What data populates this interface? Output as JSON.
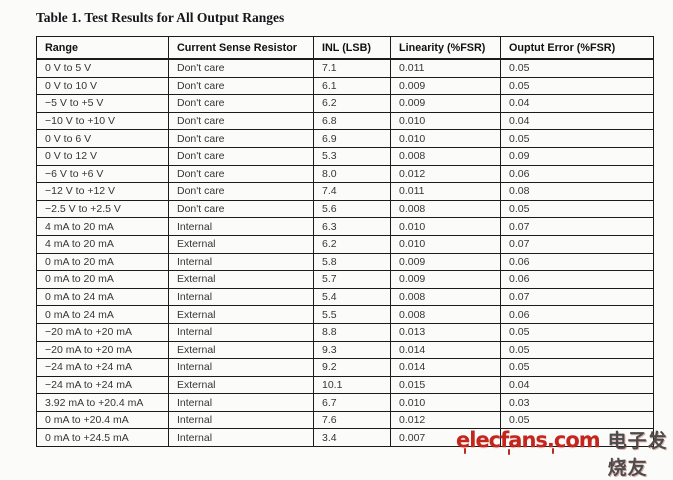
{
  "page": {
    "title": "Table 1. Test Results for All Output Ranges"
  },
  "table": {
    "columns": [
      "Range",
      "Current Sense Resistor",
      "INL (LSB)",
      "Linearity (%FSR)",
      "Ouptut Error (%FSR)"
    ],
    "rows": [
      [
        "0 V to 5 V",
        "Don't care",
        "7.1",
        "0.011",
        "0.05"
      ],
      [
        "0 V to 10 V",
        "Don't care",
        "6.1",
        "0.009",
        "0.05"
      ],
      [
        "−5 V to +5 V",
        "Don't care",
        "6.2",
        "0.009",
        "0.04"
      ],
      [
        "−10 V to +10 V",
        "Don't care",
        "6.8",
        "0.010",
        "0.04"
      ],
      [
        "0 V to 6 V",
        "Don't care",
        "6.9",
        "0.010",
        "0.05"
      ],
      [
        "0 V to 12 V",
        "Don't care",
        "5.3",
        "0.008",
        "0.09"
      ],
      [
        "−6 V to +6 V",
        "Don't care",
        "8.0",
        "0.012",
        "0.06"
      ],
      [
        "−12 V to +12 V",
        "Don't care",
        "7.4",
        "0.011",
        "0.08"
      ],
      [
        "−2.5 V to +2.5 V",
        "Don't care",
        "5.6",
        "0.008",
        "0.05"
      ],
      [
        "4 mA to 20 mA",
        "Internal",
        "6.3",
        "0.010",
        "0.07"
      ],
      [
        "4 mA to 20 mA",
        "External",
        "6.2",
        "0.010",
        "0.07"
      ],
      [
        "0 mA to 20 mA",
        "Internal",
        "5.8",
        "0.009",
        "0.06"
      ],
      [
        "0 mA to 20 mA",
        "External",
        "5.7",
        "0.009",
        "0.06"
      ],
      [
        "0 mA to 24 mA",
        "Internal",
        "5.4",
        "0.008",
        "0.07"
      ],
      [
        "0 mA to 24 mA",
        "External",
        "5.5",
        "0.008",
        "0.06"
      ],
      [
        "−20 mA to +20 mA",
        "Internal",
        "8.8",
        "0.013",
        "0.05"
      ],
      [
        "−20 mA to +20 mA",
        "External",
        "9.3",
        "0.014",
        "0.05"
      ],
      [
        "−24 mA to +24 mA",
        "Internal",
        "9.2",
        "0.014",
        "0.05"
      ],
      [
        "−24 mA to +24 mA",
        "External",
        "10.1",
        "0.015",
        "0.04"
      ],
      [
        "3.92 mA to +20.4 mA",
        "Internal",
        "6.7",
        "0.010",
        "0.03"
      ],
      [
        "0 mA to +20.4 mA",
        "Internal",
        "7.6",
        "0.012",
        "0.05"
      ],
      [
        "0 mA to +24.5 mA",
        "Internal",
        "3.4",
        "0.007",
        ""
      ]
    ]
  },
  "watermark": {
    "logo": "elecfans.com",
    "chinese": "电子发烧友",
    "logo_color": "#c4251c"
  }
}
